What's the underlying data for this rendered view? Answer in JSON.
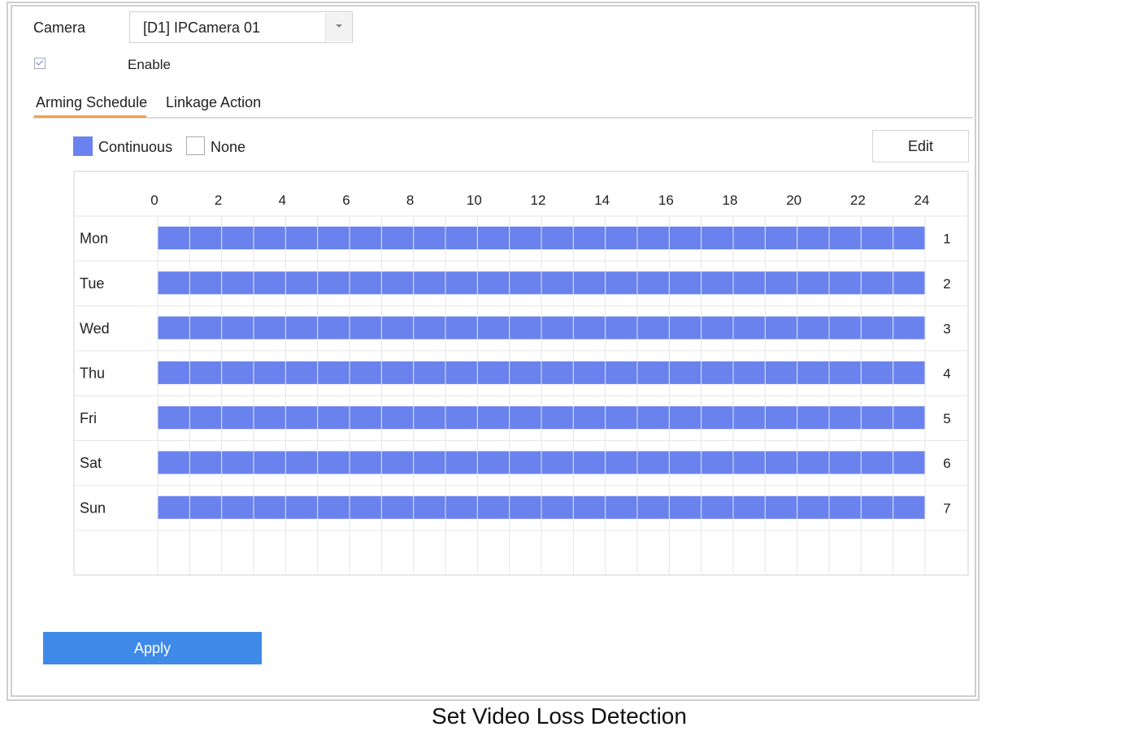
{
  "camera": {
    "label": "Camera",
    "selected": "[D1] IPCamera 01"
  },
  "enable": {
    "label": "Enable",
    "checked": true
  },
  "tabs": [
    {
      "label": "Arming Schedule",
      "active": true
    },
    {
      "label": "Linkage Action",
      "active": false
    }
  ],
  "legend": {
    "continuous_label": "Continuous",
    "continuous_color": "#6a82ee",
    "none_label": "None"
  },
  "edit_label": "Edit",
  "schedule": {
    "hour_ticks": [
      "0",
      "2",
      "4",
      "6",
      "8",
      "10",
      "12",
      "14",
      "16",
      "18",
      "20",
      "22",
      "24"
    ],
    "days": [
      {
        "name": "Mon",
        "index": "1",
        "start": 0,
        "end": 24
      },
      {
        "name": "Tue",
        "index": "2",
        "start": 0,
        "end": 24
      },
      {
        "name": "Wed",
        "index": "3",
        "start": 0,
        "end": 24
      },
      {
        "name": "Thu",
        "index": "4",
        "start": 0,
        "end": 24
      },
      {
        "name": "Fri",
        "index": "5",
        "start": 0,
        "end": 24
      },
      {
        "name": "Sat",
        "index": "6",
        "start": 0,
        "end": 24
      },
      {
        "name": "Sun",
        "index": "7",
        "start": 0,
        "end": 24
      }
    ]
  },
  "apply_label": "Apply",
  "caption": "Set Video Loss Detection",
  "colors": {
    "accent_blue": "#3f8ae8",
    "tab_underline": "#f0a24a",
    "grid_line": "#e6e6e6"
  }
}
